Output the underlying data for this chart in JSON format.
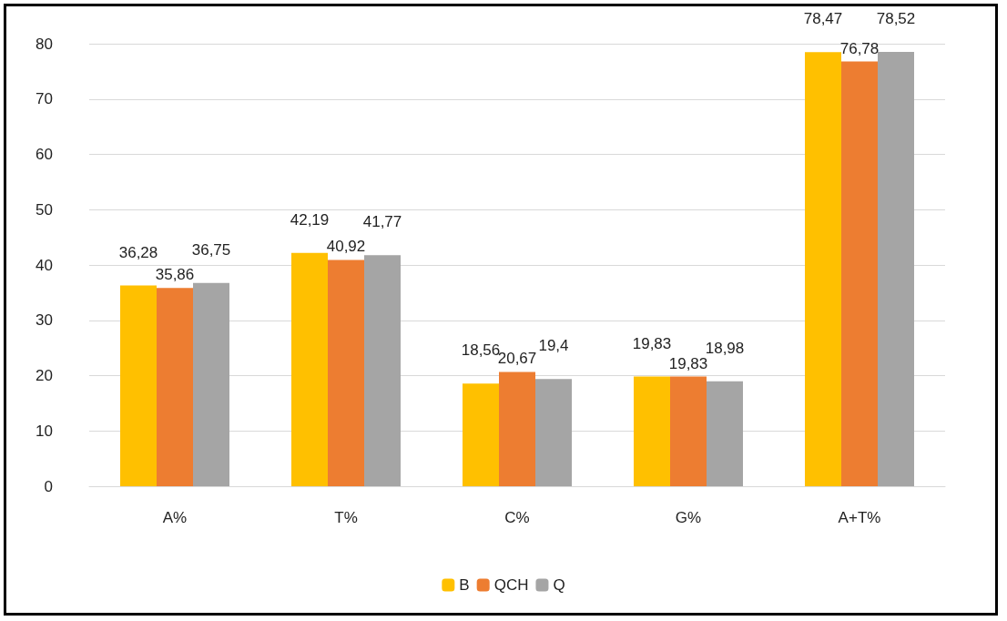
{
  "chart_data": {
    "type": "bar",
    "categories": [
      "A%",
      "T%",
      "C%",
      "G%",
      "A+T%"
    ],
    "series": [
      {
        "name": "B",
        "color": "#ffc000",
        "values": [
          36.28,
          42.19,
          18.56,
          19.83,
          78.47
        ],
        "value_labels": [
          "36,28",
          "42,19",
          "18,56",
          "19,83",
          "78,47"
        ]
      },
      {
        "name": "QCH",
        "color": "#ed7d31",
        "values": [
          35.86,
          40.92,
          20.67,
          19.83,
          76.78
        ],
        "value_labels": [
          "35,86",
          "40,92",
          "20,67",
          "19,83",
          "76,78"
        ]
      },
      {
        "name": "Q",
        "color": "#a5a5a5",
        "values": [
          36.75,
          41.77,
          19.4,
          18.98,
          78.52
        ],
        "value_labels": [
          "36,75",
          "41,77",
          "19,4",
          "18,98",
          "78,52"
        ]
      }
    ],
    "ylim": [
      0,
      80
    ],
    "yticks": [
      0,
      10,
      20,
      30,
      40,
      50,
      60,
      70,
      80
    ],
    "grid": "y",
    "legend": "bottom"
  }
}
